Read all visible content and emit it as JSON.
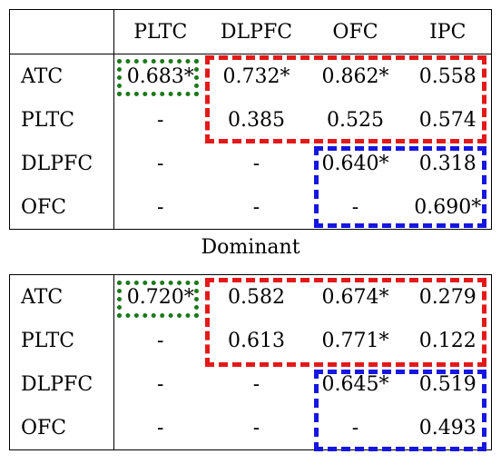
{
  "top_table": {
    "headers": [
      "",
      "PLTC",
      "DLPFC",
      "OFC",
      "IPC"
    ],
    "rows": [
      {
        "label": "ATC",
        "cells": [
          "0.683*",
          "0.732*",
          "0.862*",
          "0.558"
        ]
      },
      {
        "label": "PLTC",
        "cells": [
          "-",
          "0.385",
          "0.525",
          "0.574"
        ]
      },
      {
        "label": "DLPFC",
        "cells": [
          "-",
          "-",
          "0.640*",
          "0.318"
        ]
      },
      {
        "label": "OFC",
        "cells": [
          "-",
          "-",
          "-",
          "0.690*"
        ]
      }
    ]
  },
  "caption": "Dominant",
  "bottom_table": {
    "rows": [
      {
        "label": "ATC",
        "cells": [
          "0.720*",
          "0.582",
          "0.674*",
          "0.279"
        ]
      },
      {
        "label": "PLTC",
        "cells": [
          "-",
          "0.613",
          "0.771*",
          "0.122"
        ]
      },
      {
        "label": "DLPFC",
        "cells": [
          "-",
          "-",
          "0.645*",
          "0.519"
        ]
      },
      {
        "label": "OFC",
        "cells": [
          "-",
          "-",
          "-",
          "0.493"
        ]
      }
    ]
  },
  "highlight_colors": {
    "green": "#1a7a1a",
    "red": "#e31919",
    "blue": "#1616e0"
  }
}
